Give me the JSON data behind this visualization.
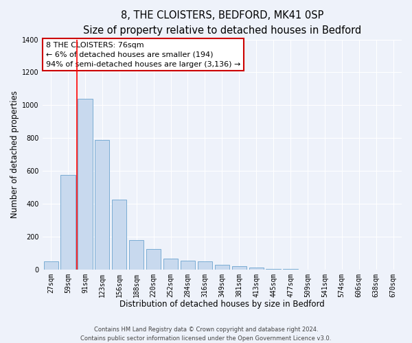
{
  "title": "8, THE CLOISTERS, BEDFORD, MK41 0SP",
  "subtitle": "Size of property relative to detached houses in Bedford",
  "xlabel": "Distribution of detached houses by size in Bedford",
  "ylabel": "Number of detached properties",
  "bar_labels": [
    "27sqm",
    "59sqm",
    "91sqm",
    "123sqm",
    "156sqm",
    "188sqm",
    "220sqm",
    "252sqm",
    "284sqm",
    "316sqm",
    "349sqm",
    "381sqm",
    "413sqm",
    "445sqm",
    "477sqm",
    "509sqm",
    "541sqm",
    "574sqm",
    "606sqm",
    "638sqm",
    "670sqm"
  ],
  "bar_values": [
    50,
    575,
    1040,
    790,
    425,
    180,
    125,
    65,
    55,
    50,
    28,
    18,
    10,
    4,
    2,
    0,
    0,
    0,
    0,
    0,
    0
  ],
  "bar_color": "#c8d9ee",
  "bar_edge_color": "#7aacd4",
  "red_line_x": 1.52,
  "ylim": [
    0,
    1400
  ],
  "yticks": [
    0,
    200,
    400,
    600,
    800,
    1000,
    1200,
    1400
  ],
  "annotation_title": "8 THE CLOISTERS: 76sqm",
  "annotation_line1": "← 6% of detached houses are smaller (194)",
  "annotation_line2": "94% of semi-detached houses are larger (3,136) →",
  "annotation_box_facecolor": "#ffffff",
  "annotation_box_edgecolor": "#cc0000",
  "footer_line1": "Contains HM Land Registry data © Crown copyright and database right 2024.",
  "footer_line2": "Contains public sector information licensed under the Open Government Licence v3.0.",
  "background_color": "#eef2fa",
  "grid_color": "#ffffff",
  "title_fontsize": 10.5,
  "subtitle_fontsize": 9,
  "axis_label_fontsize": 8.5,
  "tick_fontsize": 7,
  "annotation_fontsize": 8,
  "footer_fontsize": 6
}
